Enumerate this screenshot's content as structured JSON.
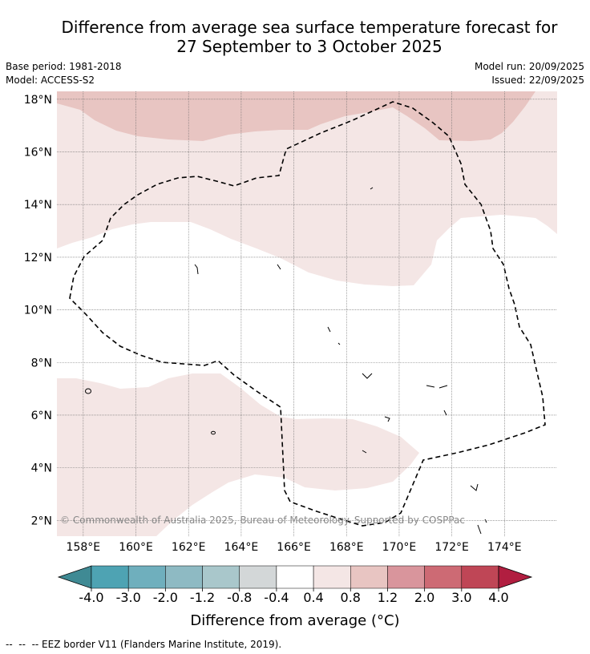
{
  "title": {
    "line1": "Difference from average sea surface temperature forecast for",
    "line2": "27 September to 3 October 2025"
  },
  "meta": {
    "base_period": "Base period: 1981-2018",
    "model": "Model: ACCESS-S2",
    "model_run": "Model run: 20/09/2025",
    "issued": "Issued: 22/09/2025"
  },
  "map": {
    "lon_range": [
      157,
      176
    ],
    "lat_range": [
      1.4,
      18.3
    ],
    "lat_ticks": [
      "18°N",
      "16°N",
      "14°N",
      "12°N",
      "10°N",
      "8°N",
      "6°N",
      "4°N",
      "2°N"
    ],
    "lon_ticks": [
      "158°E",
      "160°E",
      "162°E",
      "164°E",
      "166°E",
      "168°E",
      "170°E",
      "172°E",
      "174°E"
    ],
    "copyright": "© Commonwealth of Australia 2025, Bureau of Meteorology. Supported by COSPPac"
  },
  "colorbar": {
    "colors": [
      "#3f8a94",
      "#4ea3b3",
      "#6fafbd",
      "#8ebac3",
      "#a9c7cb",
      "#d3d7d8",
      "#ffffff",
      "#f4e6e5",
      "#e8c5c2",
      "#d9959c",
      "#cd6a74",
      "#bf4656",
      "#b11e40"
    ],
    "tick_labels": [
      "-4.0",
      "-3.0",
      "-2.0",
      "-1.2",
      "-0.8",
      "-0.4",
      "0.4",
      "0.8",
      "1.2",
      "2.0",
      "3.0",
      "4.0"
    ],
    "label": "Difference from average (°C)"
  },
  "footer": {
    "legend": "--  --  -- EEZ border V11 (Flanders Marine Institute, 2019)."
  }
}
